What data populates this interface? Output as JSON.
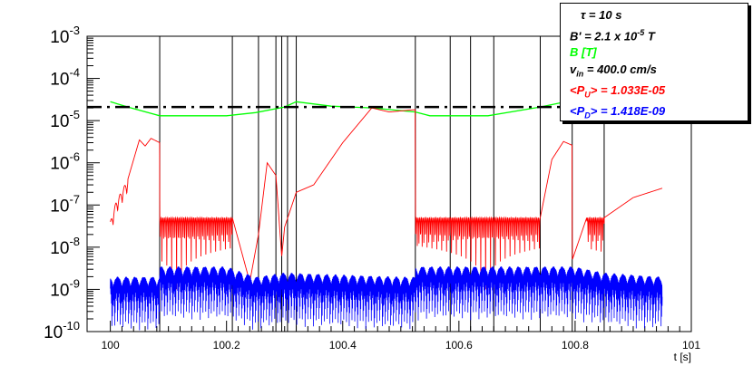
{
  "chart_data": {
    "type": "line",
    "xlabel": "t [s]",
    "x_ticks": [
      "100",
      "100.2",
      "100.4",
      "100.6",
      "100.8",
      "101"
    ],
    "y_ticks": [
      {
        "base": "10",
        "exp": "-3"
      },
      {
        "base": "10",
        "exp": "-4"
      },
      {
        "base": "10",
        "exp": "-5"
      },
      {
        "base": "10",
        "exp": "-6"
      },
      {
        "base": "10",
        "exp": "-7"
      },
      {
        "base": "10",
        "exp": "-8"
      },
      {
        "base": "10",
        "exp": "-9"
      },
      {
        "base": "10",
        "exp": "-10"
      }
    ],
    "xlim": [
      99.96,
      101.0
    ],
    "ylim_log10": [
      -10,
      -3
    ],
    "y_scale": "log",
    "grid": false,
    "legend_position": "top-right",
    "reference_line": {
      "value": 2.1e-05,
      "style": "dashed",
      "color": "#000000"
    },
    "vertical_lines_t": [
      100.085,
      100.21,
      100.255,
      100.285,
      100.295,
      100.305,
      100.32,
      100.525,
      100.585,
      100.62,
      100.66,
      100.74,
      100.795,
      100.85
    ],
    "series": [
      {
        "name": "B [T]",
        "color": "#00ff00",
        "points": [
          [
            100.0,
            2.8e-05
          ],
          [
            100.03,
            2.1e-05
          ],
          [
            100.085,
            1.3e-05
          ],
          [
            100.2,
            1.3e-05
          ],
          [
            100.25,
            1.55e-05
          ],
          [
            100.3,
            2.1e-05
          ],
          [
            100.32,
            2.8e-05
          ],
          [
            100.38,
            2.2e-05
          ],
          [
            100.45,
            2e-05
          ],
          [
            100.525,
            1.6e-05
          ],
          [
            100.55,
            1.3e-05
          ],
          [
            100.65,
            1.3e-05
          ],
          [
            100.74,
            2.1e-05
          ],
          [
            100.795,
            3e-05
          ],
          [
            100.85,
            2.7e-05
          ],
          [
            100.95,
            2.9e-05
          ]
        ]
      },
      {
        "name": "<P_U>",
        "color": "#ff0000",
        "points": [
          [
            100.0,
            4e-08
          ],
          [
            100.01,
            1.2e-07
          ],
          [
            100.03,
            4e-07
          ],
          [
            100.05,
            3.5e-06
          ],
          [
            100.06,
            2.5e-06
          ],
          [
            100.07,
            3.8e-06
          ],
          [
            100.085,
            3e-06
          ],
          [
            100.0851,
            5e-08
          ],
          [
            100.21,
            5e-08
          ],
          [
            100.24,
            1.5e-09
          ],
          [
            100.255,
            2e-08
          ],
          [
            100.27,
            1e-06
          ],
          [
            100.285,
            5e-07
          ],
          [
            100.295,
            6e-09
          ],
          [
            100.3,
            3e-08
          ],
          [
            100.32,
            2e-07
          ],
          [
            100.35,
            3e-07
          ],
          [
            100.4,
            3e-06
          ],
          [
            100.45,
            2e-05
          ],
          [
            100.48,
            1.6e-05
          ],
          [
            100.52,
            1.8e-05
          ],
          [
            100.525,
            1.8e-05
          ],
          [
            100.5251,
            5e-08
          ],
          [
            100.74,
            5e-08
          ],
          [
            100.76,
            1.2e-06
          ],
          [
            100.78,
            3.2e-06
          ],
          [
            100.795,
            2.6e-06
          ],
          [
            100.7951,
            5e-09
          ],
          [
            100.82,
            5e-08
          ],
          [
            100.85,
            5e-08
          ],
          [
            100.9,
            1.5e-07
          ],
          [
            100.95,
            2.5e-07
          ]
        ]
      },
      {
        "name": "<P_D>",
        "color": "#0000ff",
        "points": [
          [
            100.0,
            2e-09
          ],
          [
            100.085,
            2e-09
          ],
          [
            100.0851,
            3.5e-09
          ],
          [
            100.2,
            3.5e-09
          ],
          [
            100.25,
            2e-09
          ],
          [
            100.3,
            2.5e-09
          ],
          [
            100.5,
            2e-09
          ],
          [
            100.525,
            2e-09
          ],
          [
            100.5251,
            3.5e-09
          ],
          [
            100.74,
            3.5e-09
          ],
          [
            100.8,
            3.5e-09
          ],
          [
            100.85,
            2.5e-09
          ],
          [
            100.95,
            2e-09
          ]
        ]
      }
    ]
  },
  "legend": {
    "tau": "τ = 10 s",
    "b_prime_prefix": "B' =  2.1 x 10",
    "b_prime_exp": "-5",
    "b_prime_unit": "T",
    "b_series": "B [T]",
    "v_in_prefix": "v",
    "v_in_sub": "in",
    "v_in_value": "=  400.0 cm/s",
    "pu_prefix": "<P",
    "pu_sub": "U",
    "pu_value": "> = 1.033E-05",
    "pd_prefix": "<P",
    "pd_sub": "D",
    "pd_value": "> = 1.418E-09"
  }
}
